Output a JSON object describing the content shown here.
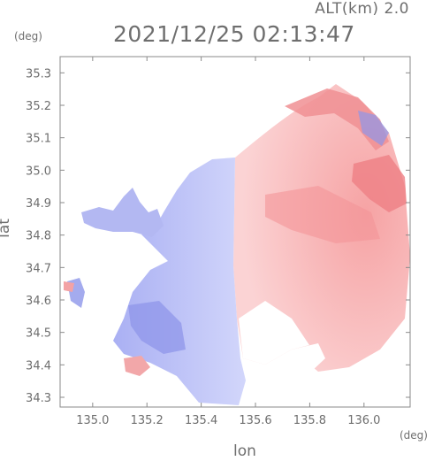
{
  "header": {
    "altitude": "ALT(km) 2.0",
    "timestamp": "2021/12/25 02:13:47"
  },
  "axes": {
    "x_unit": "(deg)",
    "y_unit": "(deg)",
    "xlabel": "lon",
    "ylabel": "lat",
    "x_ticks": [
      "135.0",
      "135.2",
      "135.4",
      "135.6",
      "135.8",
      "136.0"
    ],
    "y_ticks": [
      "35.3",
      "35.2",
      "35.1",
      "35.0",
      "34.9",
      "34.8",
      "34.7",
      "34.6",
      "34.5",
      "34.4",
      "34.3"
    ]
  },
  "map_data": {
    "type": "doppler-velocity-field",
    "x_range": [
      134.88,
      136.17
    ],
    "y_range": [
      34.27,
      35.35
    ],
    "colors": {
      "approaching": "#a9b2f2",
      "receding": "#f7a8a8",
      "strong_approaching": "#7f86e6",
      "strong_receding": "#ef6f72",
      "frame": "#8a8a8a"
    }
  }
}
